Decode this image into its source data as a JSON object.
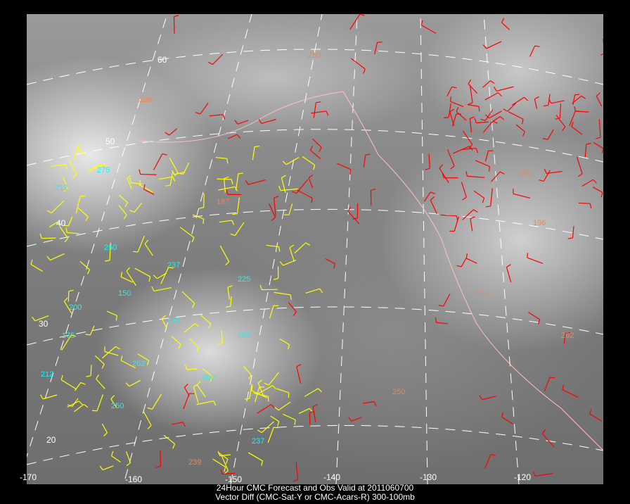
{
  "title_line1": "24Hour CMC Forecast and Obs Valid at 2011060700",
  "title_line2": "Vector Diff (CMC-Sat-Y or CMC-Acars-R) 300-100mb",
  "longitude_labels": [
    "-170",
    "-160",
    "-150",
    "-140",
    "-130",
    "-120"
  ],
  "latitude_labels": [
    "60",
    "50",
    "40",
    "30",
    "20"
  ],
  "colors": {
    "satellite_obs": "#ffff00",
    "acars_obs": "#ff0000",
    "sat_pressure_label": "#00ffff",
    "acars_pressure_label": "#ff8040",
    "grid": "#ffffff",
    "coast": "#ffc0c0"
  },
  "pressure_labels": [
    {
      "v": "250",
      "c": "acars"
    },
    {
      "v": "238",
      "c": "acars"
    },
    {
      "v": "227",
      "c": "acars"
    },
    {
      "v": "206",
      "c": "acars"
    },
    {
      "v": "196",
      "c": "acars"
    },
    {
      "v": "187",
      "c": "acars"
    },
    {
      "v": "216",
      "c": "acars"
    },
    {
      "v": "262",
      "c": "acars"
    },
    {
      "v": "239",
      "c": "acars"
    },
    {
      "v": "250",
      "c": "acars"
    },
    {
      "v": "275",
      "c": "sat"
    },
    {
      "v": "212",
      "c": "sat"
    },
    {
      "v": "250",
      "c": "sat"
    },
    {
      "v": "237",
      "c": "sat"
    },
    {
      "v": "225",
      "c": "sat"
    },
    {
      "v": "200",
      "c": "sat"
    },
    {
      "v": "175",
      "c": "sat"
    },
    {
      "v": "262",
      "c": "sat"
    },
    {
      "v": "300",
      "c": "sat"
    },
    {
      "v": "287",
      "c": "sat"
    },
    {
      "v": "150",
      "c": "sat"
    },
    {
      "v": "187",
      "c": "sat"
    },
    {
      "v": "212",
      "c": "sat"
    },
    {
      "v": "250",
      "c": "sat"
    },
    {
      "v": "237",
      "c": "sat"
    }
  ]
}
